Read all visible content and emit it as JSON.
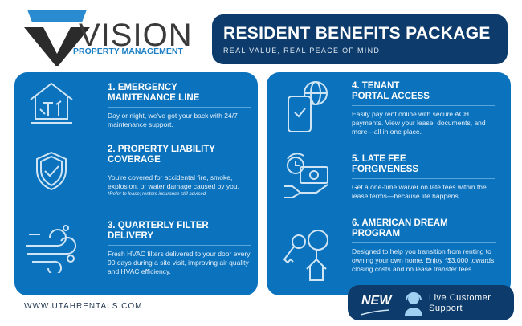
{
  "logo": {
    "brand": "VISION",
    "tagline": "PROPERTY MANAGEMENT"
  },
  "header": {
    "title": "RESIDENT BENEFITS PACKAGE",
    "subtitle": "REAL VALUE, REAL PEACE OF MIND"
  },
  "benefits": [
    {
      "title1": "1. EMERGENCY",
      "title2": "MAINTENANCE LINE",
      "desc": "Day or night, we've got your back with 24/7 maintenance support.",
      "icon": "house-tools-icon"
    },
    {
      "title1": "2. PROPERTY LIABILITY",
      "title2": "COVERAGE",
      "desc": "You're covered for accidental fire, smoke, explosion, or water damage caused by you.",
      "note": "*Refer to lease; renters insurance still advised",
      "icon": "shield-check-icon"
    },
    {
      "title1": "3. QUARTERLY FILTER",
      "title2": "DELIVERY",
      "desc": "Fresh HVAC filters delivered to your door every 90 days during a site visit, improving air quality and HVAC efficiency.",
      "icon": "wind-icon"
    },
    {
      "title1": "4. TENANT",
      "title2": "PORTAL ACCESS",
      "desc": "Easily pay rent online with secure ACH payments. View your lease, documents, and more—all in one place.",
      "icon": "phone-globe-icon"
    },
    {
      "title1": "5. LATE FEE",
      "title2": "FORGIVENESS",
      "desc": "Get a one-time waiver on late fees within the lease terms—because life happens.",
      "icon": "hand-money-clock-icon"
    },
    {
      "title1": "6. AMERICAN DREAM",
      "title2": "PROGRAM",
      "desc": "Designed to help you transition from renting to owning your own home. Enjoy *$3,000 towards closing costs and no lease transfer fees.",
      "icon": "key-house-icon"
    }
  ],
  "footer": {
    "url": "WWW.UTAHRENTALS.COM",
    "badge_new": "NEW",
    "badge_line1": "Live Customer",
    "badge_line2": "Support"
  },
  "colors": {
    "panel": "#0b73bd",
    "navy": "#0d3b6b",
    "accent": "#1a7fc4"
  }
}
